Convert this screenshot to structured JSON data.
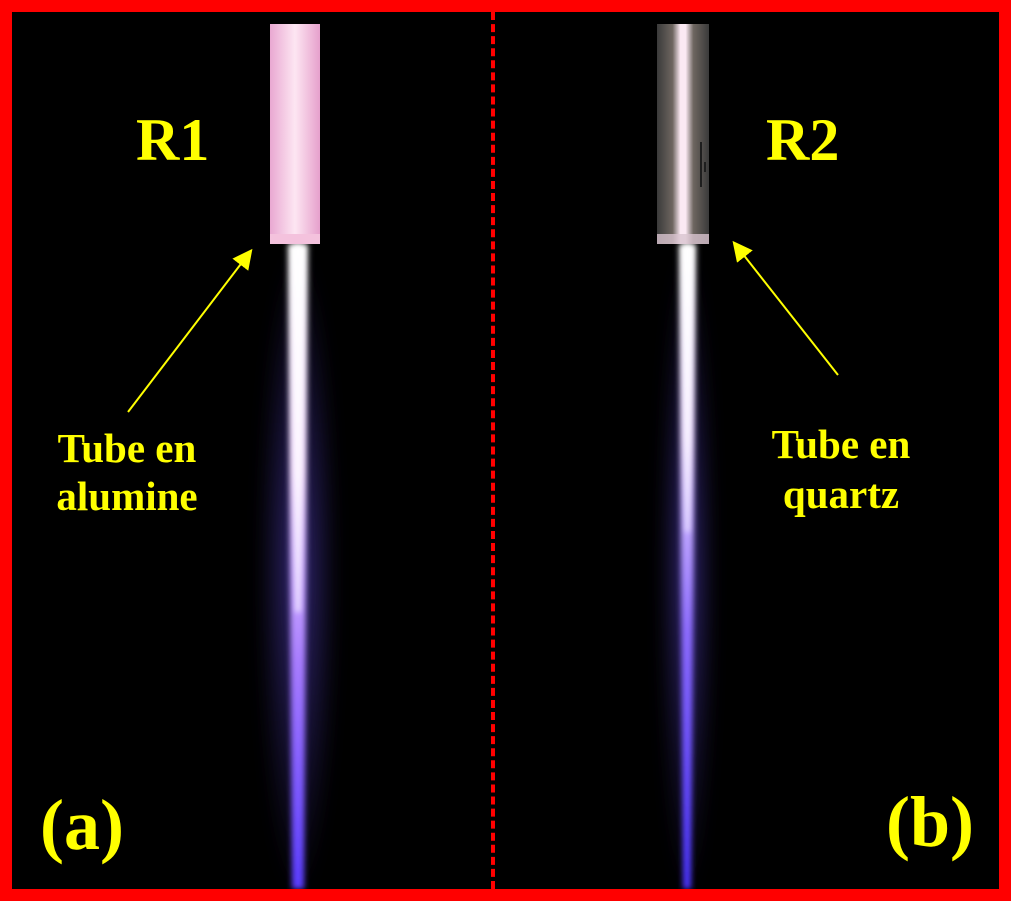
{
  "panels": [
    {
      "reactor_label": "R1",
      "tube_label_line1": "Tube en",
      "tube_label_line2": "alumine",
      "panel_label": "(a)"
    },
    {
      "reactor_label": "R2",
      "tube_label_line1": "Tube en",
      "tube_label_line2": "quartz",
      "panel_label": "(b)"
    }
  ],
  "colors": {
    "border": "#ff0000",
    "label": "#ffff00",
    "background": "#000000",
    "plasma": "#7a5cff",
    "alumina_tube": "#f7cfe6"
  }
}
